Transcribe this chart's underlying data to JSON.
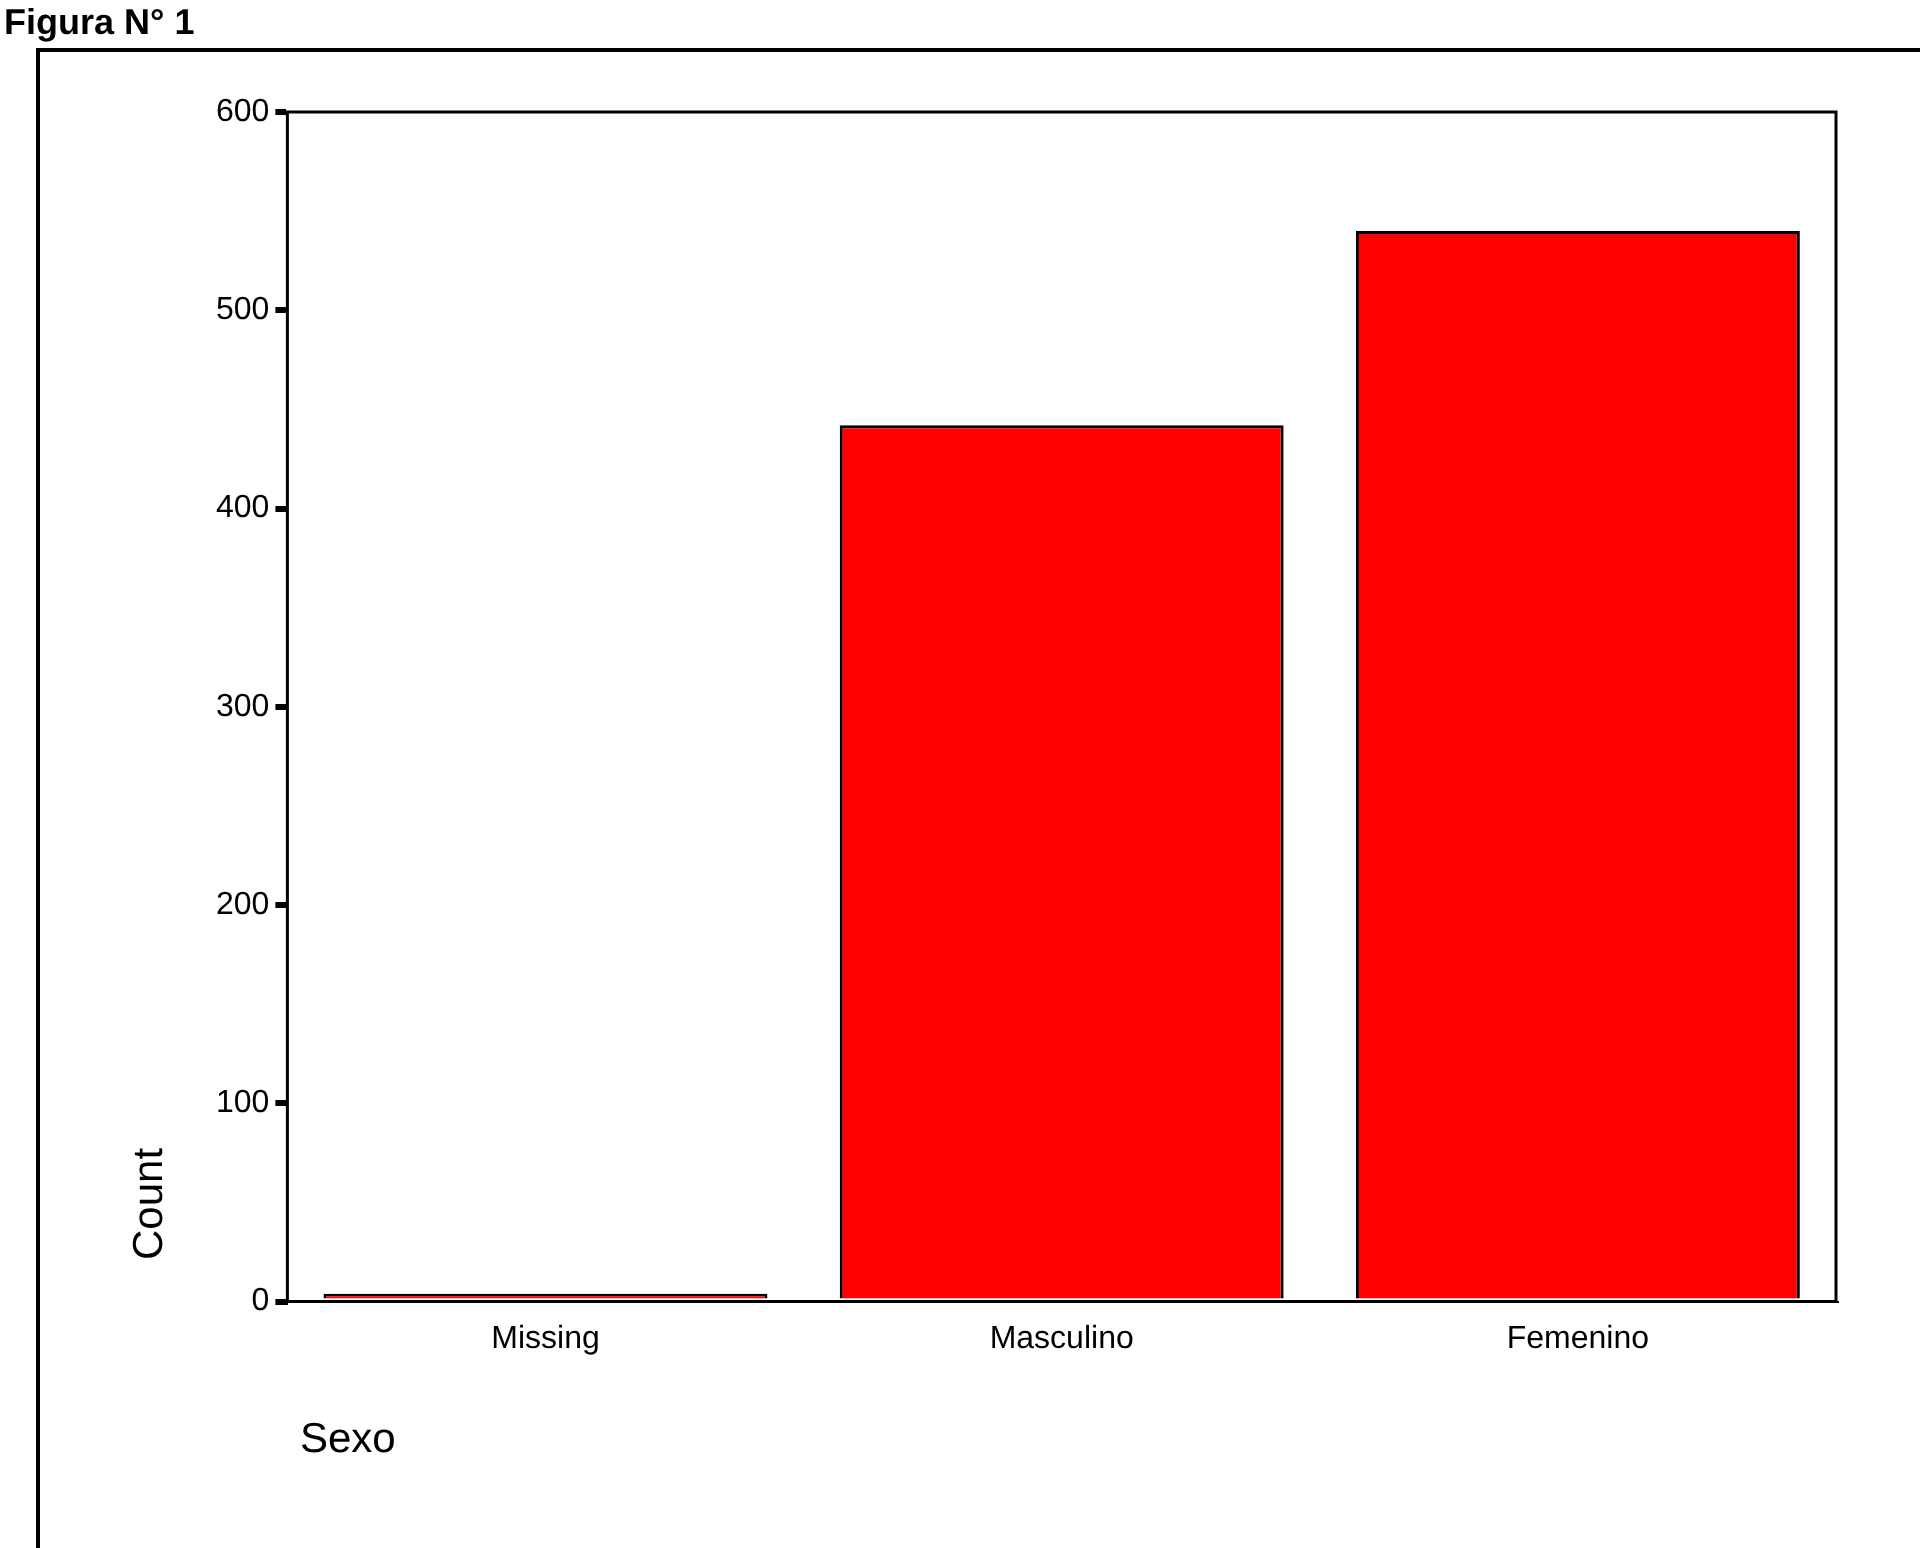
{
  "chart_data": {
    "type": "bar",
    "title": "Figura N° 1",
    "xlabel": "Sexo",
    "ylabel": "Count",
    "categories": [
      "Missing",
      "Masculino",
      "Femenino"
    ],
    "values": [
      4,
      442,
      540
    ],
    "color": "#ff0000",
    "ylim": [
      0,
      600
    ],
    "yticks": [
      0,
      100,
      200,
      300,
      400,
      500,
      600
    ],
    "grid": false,
    "legend": false
  }
}
